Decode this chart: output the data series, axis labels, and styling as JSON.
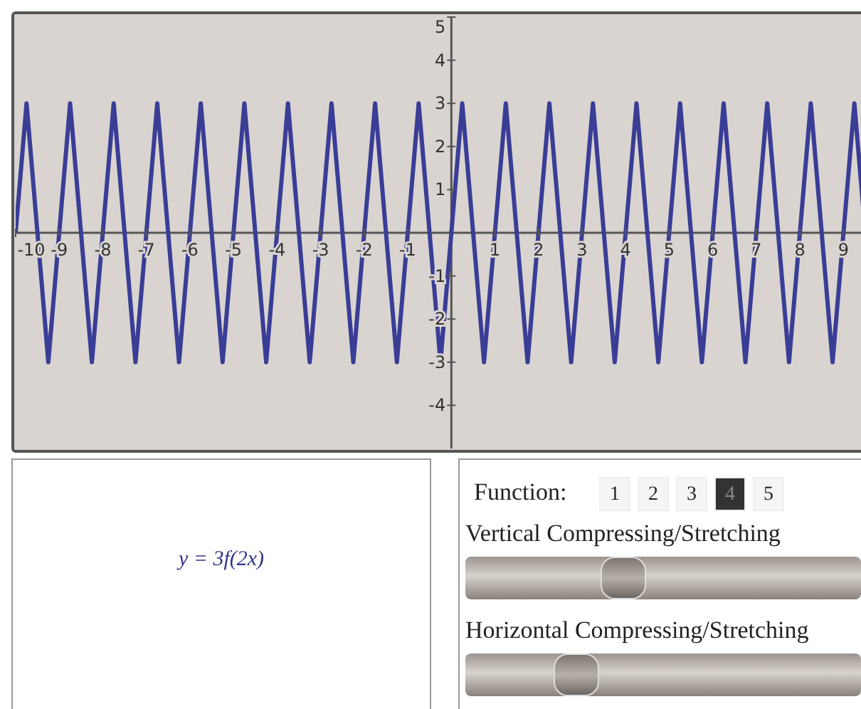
{
  "chart_data": {
    "type": "line",
    "x": [
      -10,
      -9.75,
      -9.25,
      -8.75,
      -8.25,
      -7.75,
      -7.25,
      -6.75,
      -6.25,
      -5.75,
      -5.25,
      -4.75,
      -4.25,
      -3.75,
      -3.25,
      -2.75,
      -2.25,
      -1.75,
      -1.25,
      -0.75,
      -0.25,
      0.25,
      0.75,
      1.25,
      1.75,
      2.25,
      2.75,
      3.25,
      3.75,
      4.25,
      4.75,
      5.25,
      5.75,
      6.25,
      6.75,
      7.25,
      7.75,
      8.25,
      8.75,
      9.25,
      9.5
    ],
    "series": [
      {
        "color": "#3a3d96",
        "values": [
          0,
          3,
          -3,
          3,
          -3,
          3,
          -3,
          3,
          -3,
          3,
          -3,
          3,
          -3,
          3,
          -3,
          3,
          -3,
          3,
          -3,
          3,
          -3,
          3,
          -3,
          3,
          -3,
          3,
          -3,
          3,
          -3,
          3,
          -3,
          3,
          -3,
          3,
          -3,
          3,
          -3,
          3,
          -3,
          3,
          0
        ]
      }
    ],
    "xlim": [
      -10,
      9.5
    ],
    "xticks": [
      -10,
      -9,
      -8,
      -7,
      -6,
      -5,
      -4,
      -3,
      -2,
      -1,
      1,
      2,
      3,
      4,
      5,
      6,
      7,
      8,
      9
    ],
    "ylim": [
      -5,
      5
    ],
    "yticks": [
      5,
      4,
      3,
      2,
      1,
      -1,
      -2,
      -3,
      -4
    ],
    "grid": false,
    "marker": "none",
    "line_style": "solid",
    "annotations": [
      "y = 3f(2x)",
      "Function:",
      "1",
      "2",
      "3",
      "4",
      "5",
      "Vertical Compressing/Stretching",
      "Horizontal Compressing/Stretching"
    ]
  }
}
